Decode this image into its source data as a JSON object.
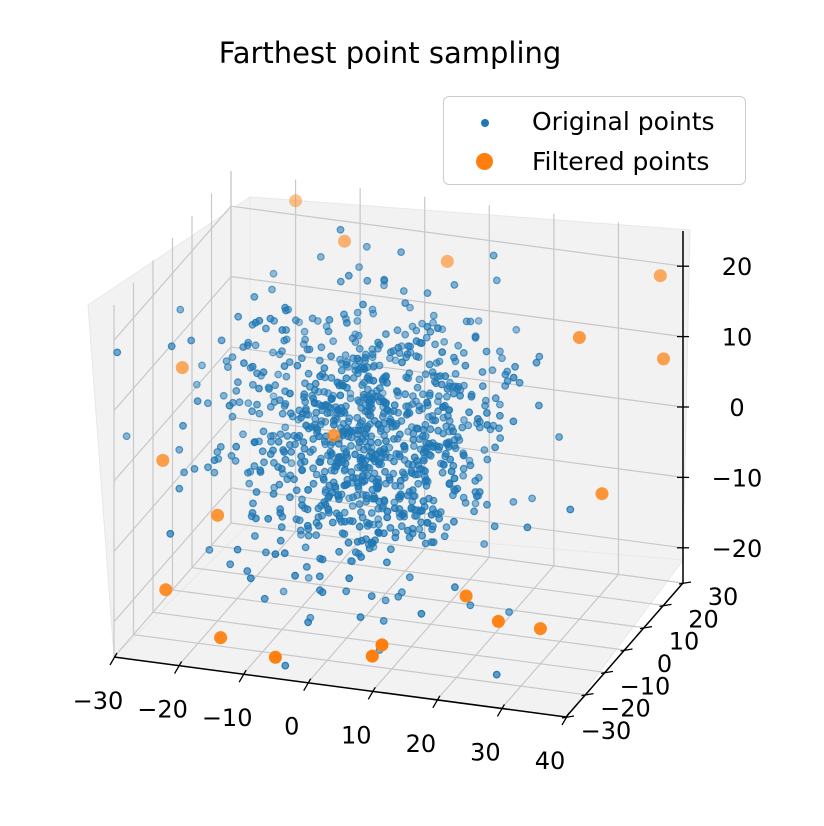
{
  "chart_data": {
    "type": "scatter",
    "projection": "3d",
    "title": "Farthest point sampling",
    "xlabel": "",
    "ylabel": "",
    "zlabel": "",
    "xlim": [
      -30,
      40
    ],
    "ylim": [
      -30,
      30
    ],
    "zlim": [
      -25,
      25
    ],
    "x_ticks": [
      "−30",
      "−20",
      "−10",
      "0",
      "10",
      "20",
      "30",
      "40"
    ],
    "y_ticks": [
      "−30",
      "−20",
      "−10",
      "0",
      "10",
      "20",
      "30"
    ],
    "z_ticks": [
      "−20",
      "−10",
      "0",
      "10",
      "20"
    ],
    "grid": true,
    "legend_position": "top-right",
    "series": [
      {
        "name": "Original points",
        "color": "#1f77b4",
        "distribution": "gaussian",
        "count": 1000,
        "std": 10
      },
      {
        "name": "Filtered points",
        "color": "#ff7f0e",
        "points": [
          [
            -20,
            30,
            22
          ],
          [
            -30,
            5,
            5
          ],
          [
            -30,
            -5,
            -5
          ],
          [
            -10,
            22,
            20
          ],
          [
            5,
            25,
            18
          ],
          [
            10,
            -25,
            -20
          ],
          [
            25,
            -15,
            -18
          ],
          [
            30,
            -10,
            -20
          ],
          [
            -25,
            -20,
            -18
          ],
          [
            30,
            10,
            15
          ],
          [
            40,
            20,
            10
          ],
          [
            35,
            5,
            -5
          ],
          [
            -5,
            0,
            0
          ],
          [
            20,
            -15,
            -15
          ],
          [
            -15,
            -25,
            -22
          ],
          [
            -5,
            -30,
            -22
          ],
          [
            -20,
            -10,
            -10
          ],
          [
            10,
            -30,
            -20
          ],
          [
            38,
            25,
            20
          ]
        ]
      }
    ]
  }
}
